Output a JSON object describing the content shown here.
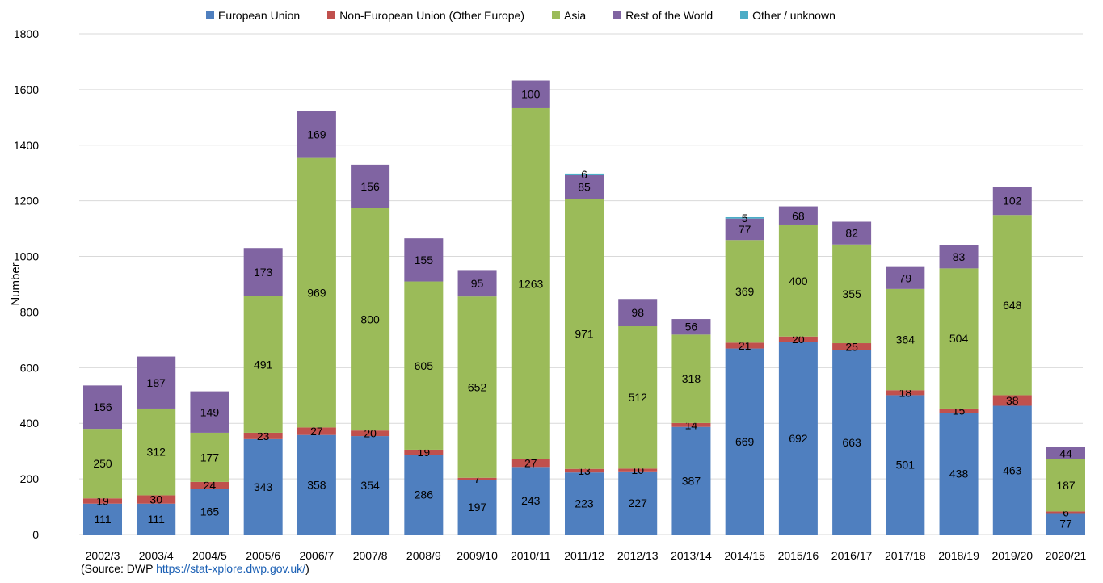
{
  "legend_items": [
    {
      "label": "European Union",
      "color": "#4f7fbf"
    },
    {
      "label": "Non-European Union (Other Europe)",
      "color": "#c0504d"
    },
    {
      "label": "Asia",
      "color": "#9bbb59"
    },
    {
      "label": "Rest of the World",
      "color": "#8064a2"
    },
    {
      "label": "Other / unknown",
      "color": "#4bacc6"
    }
  ],
  "source": {
    "prefix": "(Source: DWP ",
    "link": "https://stat-xplore.dwp.gov.uk/",
    "suffix": ")"
  },
  "chart_data": {
    "type": "bar",
    "stacked": true,
    "title": "",
    "xlabel": "",
    "ylabel": "Number",
    "ylim": [
      0,
      1800
    ],
    "yticks": [
      0,
      200,
      400,
      600,
      800,
      1000,
      1200,
      1400,
      1600,
      1800
    ],
    "grid": true,
    "legend_position": "top",
    "categories": [
      "2002/3",
      "2003/4",
      "2004/5",
      "2005/6",
      "2006/7",
      "2007/8",
      "2008/9",
      "2009/10",
      "2010/11",
      "2011/12",
      "2012/13",
      "2013/14",
      "2014/15",
      "2015/16",
      "2016/17",
      "2017/18",
      "2018/19",
      "2019/20",
      "2020/21"
    ],
    "series": [
      {
        "name": "European Union",
        "color": "#4f7fbf",
        "values": [
          111,
          111,
          165,
          343,
          358,
          354,
          286,
          197,
          243,
          223,
          227,
          387,
          669,
          692,
          663,
          501,
          438,
          463,
          77
        ]
      },
      {
        "name": "Non-European Union (Other Europe)",
        "color": "#c0504d",
        "values": [
          19,
          30,
          24,
          23,
          27,
          20,
          19,
          7,
          27,
          13,
          10,
          14,
          21,
          20,
          25,
          18,
          15,
          38,
          6
        ]
      },
      {
        "name": "Asia",
        "color": "#9bbb59",
        "values": [
          250,
          312,
          177,
          491,
          969,
          800,
          605,
          652,
          1263,
          971,
          512,
          318,
          369,
          400,
          355,
          364,
          504,
          648,
          187
        ]
      },
      {
        "name": "Rest of the World",
        "color": "#8064a2",
        "values": [
          156,
          187,
          149,
          173,
          169,
          156,
          155,
          95,
          100,
          85,
          98,
          56,
          77,
          68,
          82,
          79,
          83,
          102,
          44
        ]
      },
      {
        "name": "Other / unknown",
        "color": "#4bacc6",
        "values": [
          0,
          0,
          0,
          0,
          0,
          0,
          0,
          0,
          0,
          6,
          0,
          0,
          5,
          0,
          0,
          0,
          0,
          0,
          0
        ]
      }
    ]
  }
}
